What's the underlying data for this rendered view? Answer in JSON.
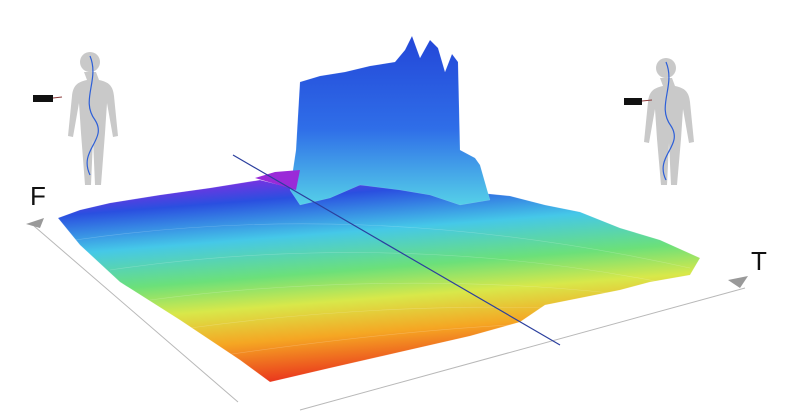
{
  "axes": {
    "frequency": "F",
    "time": "T"
  }
}
